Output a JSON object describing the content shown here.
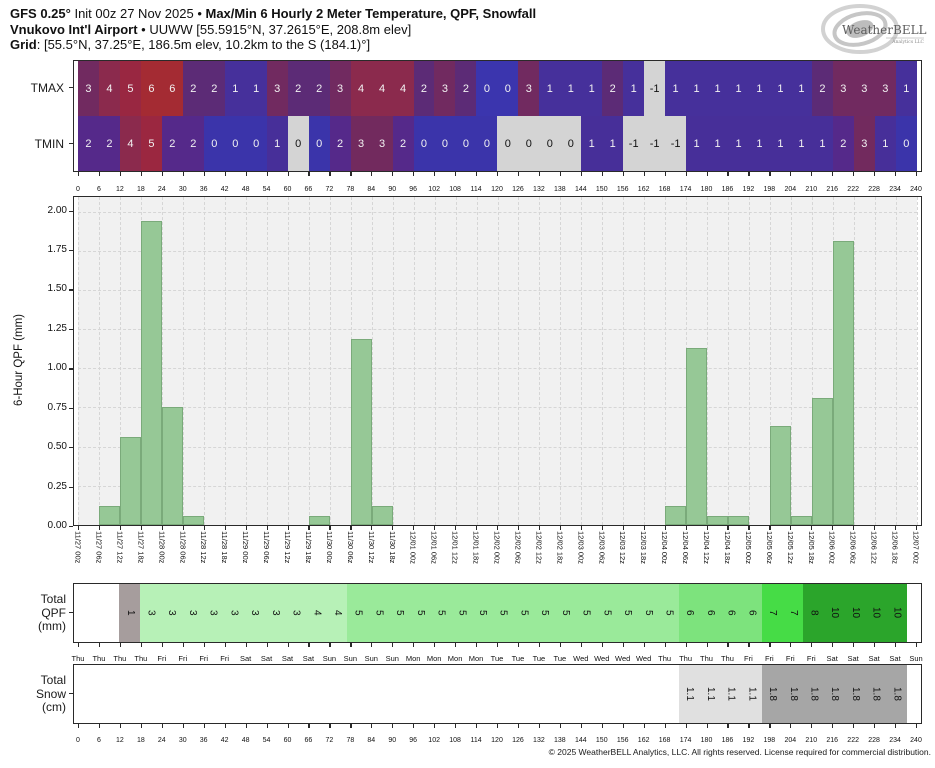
{
  "header": {
    "line1_model": "GFS 0.25°",
    "line1_mid": " Init 00z 27 Nov 2025 • ",
    "line1_product": "Max/Min 6 Hourly 2 Meter Temperature, QPF, Snowfall",
    "line2_station": "Vnukovo Int'l Airport",
    "line2_rest": " • UUWW [55.5915°N, 37.2615°E, 208.8m elev]",
    "line3_label": "Grid",
    "line3_rest": ": [55.5°N, 37.25°E, 186.5m elev, 10.2km to the S (184.1)°]"
  },
  "logo": {
    "brand": "WeatherBELL",
    "sub": "Analytics LLC"
  },
  "footer": {
    "copyright": "© 2025 WeatherBELL Analytics, LLC. All rights reserved. License required for commercial distribution."
  },
  "chart_data": [
    {
      "type": "heatmap",
      "name": "max-min-6h-2m-temperature",
      "x_hour_labels": [
        "0",
        "6",
        "12",
        "18",
        "24",
        "30",
        "36",
        "42",
        "48",
        "54",
        "60",
        "66",
        "72",
        "78",
        "84",
        "90",
        "96",
        "102",
        "108",
        "114",
        "120",
        "126",
        "132",
        "138",
        "144",
        "150",
        "156",
        "162",
        "168",
        "174",
        "180",
        "186",
        "192",
        "198",
        "204",
        "210",
        "216",
        "222",
        "228",
        "234",
        "240"
      ],
      "gray_color": "#d4d4d4",
      "series": [
        {
          "name": "TMAX",
          "values": [
            3,
            4,
            5,
            6,
            6,
            2,
            2,
            1,
            1,
            3,
            2,
            2,
            3,
            4,
            4,
            4,
            2,
            3,
            2,
            0,
            0,
            3,
            1,
            1,
            1,
            2,
            1,
            -1,
            1,
            1,
            1,
            1,
            1,
            1,
            1,
            2,
            3,
            3,
            3,
            1
          ],
          "colors": [
            "#712a60",
            "#8b2a4d",
            "#992741",
            "#a42b33",
            "#a42b33",
            "#5c2b76",
            "#5c2b76",
            "#46309b",
            "#46309b",
            "#712a60",
            "#5c2b76",
            "#5c2b76",
            "#712a60",
            "#8b2a4d",
            "#8b2a4d",
            "#8b2a4d",
            "#5c2b76",
            "#712a60",
            "#5c2b76",
            "#3b35ae",
            "#3b35ae",
            "#712a60",
            "#46309b",
            "#46309b",
            "#46309b",
            "#5c2b76",
            "#46309b",
            "#d4d4d4",
            "#46309b",
            "#46309b",
            "#46309b",
            "#46309b",
            "#46309b",
            "#46309b",
            "#46309b",
            "#5c2b76",
            "#712a60",
            "#712a60",
            "#712a60",
            "#46309b"
          ]
        },
        {
          "name": "TMIN",
          "values": [
            2,
            2,
            4,
            5,
            2,
            2,
            0,
            0,
            0,
            1,
            0,
            0,
            2,
            3,
            3,
            2,
            0,
            0,
            0,
            0,
            0,
            0,
            0,
            0,
            1,
            1,
            -1,
            -1,
            -1,
            1,
            1,
            1,
            1,
            1,
            1,
            1,
            2,
            3,
            1,
            0
          ],
          "colors": [
            "#55298a",
            "#55298a",
            "#8b2a4d",
            "#9b2740",
            "#55298a",
            "#55298a",
            "#3b34aa",
            "#3b34aa",
            "#3b34aa",
            "#472f99",
            "#d4d4d4",
            "#3b34aa",
            "#55298a",
            "#722a5e",
            "#722a5e",
            "#55298a",
            "#3b34aa",
            "#3b34aa",
            "#3b34aa",
            "#3b34aa",
            "#d4d4d4",
            "#d4d4d4",
            "#d4d4d4",
            "#d4d4d4",
            "#472f99",
            "#472f99",
            "#d4d4d4",
            "#d4d4d4",
            "#d4d4d4",
            "#472f99",
            "#472f99",
            "#472f99",
            "#472f99",
            "#472f99",
            "#472f99",
            "#472f99",
            "#55298a",
            "#722a5e",
            "#472f99",
            "#3b34aa"
          ]
        }
      ]
    },
    {
      "type": "bar",
      "name": "six-hour-qpf",
      "ylabel": "6-Hour QPF (mm)",
      "ymax": 2.093,
      "plot_bg": "#f1f1f1",
      "bar_color": "#96c896",
      "yticks": [
        0.0,
        0.25,
        0.5,
        0.75,
        1.0,
        1.25,
        1.5,
        1.75,
        2.0
      ],
      "ytick_labels": [
        "0.00",
        "0.25",
        "0.50",
        "0.75",
        "1.00",
        "1.25",
        "1.50",
        "1.75",
        "2.00"
      ],
      "x_labels": [
        "11/27 00z",
        "11/27 06z",
        "11/27 12z",
        "11/27 18z",
        "11/28 00z",
        "11/28 06z",
        "11/28 12z",
        "11/28 18z",
        "11/29 00z",
        "11/29 06z",
        "11/29 12z",
        "11/29 18z",
        "11/30 00z",
        "11/30 06z",
        "11/30 12z",
        "11/30 18z",
        "12/01 00z",
        "12/01 06z",
        "12/01 12z",
        "12/01 18z",
        "12/02 00z",
        "12/02 06z",
        "12/02 12z",
        "12/02 18z",
        "12/03 00z",
        "12/03 06z",
        "12/03 12z",
        "12/03 18z",
        "12/04 00z",
        "12/04 06z",
        "12/04 12z",
        "12/04 18z",
        "12/05 00z",
        "12/05 06z",
        "12/05 12z",
        "12/05 18z",
        "12/06 00z",
        "12/06 06z",
        "12/06 12z",
        "12/06 18z",
        "12/07 00z"
      ],
      "values": [
        0,
        0.12,
        0.56,
        1.94,
        0.75,
        0.06,
        0,
        0,
        0,
        0,
        0,
        0.06,
        0,
        1.19,
        0.12,
        0,
        0,
        0,
        0,
        0,
        0,
        0,
        0,
        0,
        0,
        0,
        0,
        0,
        0.12,
        1.13,
        0.06,
        0.06,
        0,
        0.63,
        0.06,
        0.81,
        1.81,
        0,
        0,
        0
      ]
    },
    {
      "type": "strip",
      "name": "total-qpf",
      "label_lines": [
        "Total",
        "QPF",
        "(mm)"
      ],
      "cell_labels": [
        "",
        "",
        "1",
        "3",
        "3",
        "3",
        "3",
        "3",
        "3",
        "3",
        "3",
        "4",
        "4",
        "5",
        "5",
        "5",
        "5",
        "5",
        "5",
        "5",
        "5",
        "5",
        "5",
        "5",
        "5",
        "5",
        "5",
        "5",
        "5",
        "6",
        "6",
        "6",
        "6",
        "7",
        "7",
        "8",
        "10",
        "10",
        "10",
        "10"
      ],
      "cell_colors": [
        "#ffffff",
        "#ffffff",
        "#a69d9d",
        "#b7f1b7",
        "#b7f1b7",
        "#b7f1b7",
        "#b7f1b7",
        "#b7f1b7",
        "#b7f1b7",
        "#b7f1b7",
        "#b7f1b7",
        "#b7f1b7",
        "#b7f1b7",
        "#9aea9a",
        "#9aea9a",
        "#9aea9a",
        "#9aea9a",
        "#9aea9a",
        "#9aea9a",
        "#9aea9a",
        "#9aea9a",
        "#9aea9a",
        "#9aea9a",
        "#9aea9a",
        "#9aea9a",
        "#9aea9a",
        "#9aea9a",
        "#9aea9a",
        "#9aea9a",
        "#7de37d",
        "#7de37d",
        "#7de37d",
        "#7de37d",
        "#46dc46",
        "#46dc46",
        "#2ba52b",
        "#2ba52b",
        "#2ba52b",
        "#2ba52b",
        "#2ba52b"
      ],
      "x_day_labels": [
        "Thu",
        "Thu",
        "Thu",
        "Thu",
        "Fri",
        "Fri",
        "Fri",
        "Fri",
        "Sat",
        "Sat",
        "Sat",
        "Sat",
        "Sun",
        "Sun",
        "Sun",
        "Sun",
        "Mon",
        "Mon",
        "Mon",
        "Mon",
        "Tue",
        "Tue",
        "Tue",
        "Tue",
        "Wed",
        "Wed",
        "Wed",
        "Wed",
        "Thu",
        "Thu",
        "Thu",
        "Thu",
        "Fri",
        "Fri",
        "Fri",
        "Fri",
        "Sat",
        "Sat",
        "Sat",
        "Sat",
        "Sun"
      ]
    },
    {
      "type": "strip",
      "name": "total-snow",
      "label_lines": [
        "Total",
        "Snow",
        "(cm)"
      ],
      "cell_labels": [
        "",
        "",
        "",
        "",
        "",
        "",
        "",
        "",
        "",
        "",
        "",
        "",
        "",
        "",
        "",
        "",
        "",
        "",
        "",
        "",
        "",
        "",
        "",
        "",
        "",
        "",
        "",
        "",
        "",
        "1.1",
        "1.1",
        "1.1",
        "1.1",
        "1.8",
        "1.8",
        "1.8",
        "1.8",
        "1.8",
        "1.8",
        "1.8"
      ],
      "cell_colors": [
        "#ffffff",
        "#ffffff",
        "#ffffff",
        "#ffffff",
        "#ffffff",
        "#ffffff",
        "#ffffff",
        "#ffffff",
        "#ffffff",
        "#ffffff",
        "#ffffff",
        "#ffffff",
        "#ffffff",
        "#ffffff",
        "#ffffff",
        "#ffffff",
        "#ffffff",
        "#ffffff",
        "#ffffff",
        "#ffffff",
        "#ffffff",
        "#ffffff",
        "#ffffff",
        "#ffffff",
        "#ffffff",
        "#ffffff",
        "#ffffff",
        "#ffffff",
        "#ffffff",
        "#e0e0e0",
        "#e0e0e0",
        "#e0e0e0",
        "#e0e0e0",
        "#a6a6a6",
        "#a6a6a6",
        "#a6a6a6",
        "#a6a6a6",
        "#a6a6a6",
        "#a6a6a6",
        "#a6a6a6"
      ],
      "x_hour_labels": [
        "0",
        "6",
        "12",
        "18",
        "24",
        "30",
        "36",
        "42",
        "48",
        "54",
        "60",
        "66",
        "72",
        "78",
        "84",
        "90",
        "96",
        "102",
        "108",
        "114",
        "120",
        "126",
        "132",
        "138",
        "144",
        "150",
        "156",
        "162",
        "168",
        "174",
        "180",
        "186",
        "192",
        "198",
        "204",
        "210",
        "216",
        "222",
        "228",
        "234",
        "240"
      ]
    }
  ]
}
